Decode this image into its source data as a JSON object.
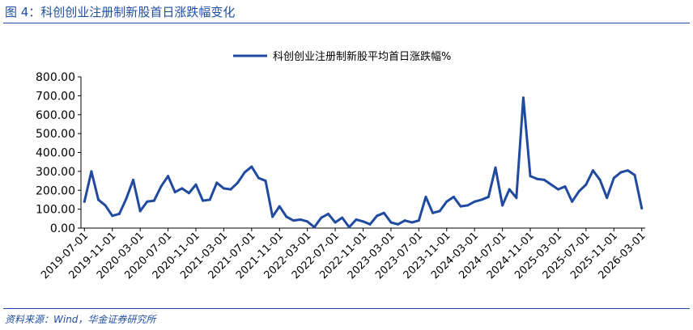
{
  "figure": {
    "title": "图 4：科创创业注册制新股首日涨跌幅变化",
    "source": "资料来源：Wind，华金证券研究所"
  },
  "colors": {
    "accent": "#1f4fa3",
    "series": "#1f4aa0"
  },
  "chart_data": {
    "type": "line",
    "title": "",
    "xlabel": "",
    "ylabel": "",
    "ylim": [
      0,
      800
    ],
    "y_ticks": [
      "0.00",
      "100.00",
      "200.00",
      "300.00",
      "400.00",
      "500.00",
      "600.00",
      "700.00",
      "800.00"
    ],
    "x_tick_labels": [
      "2019-07-01",
      "2019-11-01",
      "2020-03-01",
      "2020-07-01",
      "2020-11-01",
      "2021-03-01",
      "2021-07-01",
      "2021-11-01",
      "2022-03-01",
      "2022-07-01",
      "2022-11-01",
      "2023-03-01",
      "2023-07-01",
      "2023-11-01",
      "2024-03-01",
      "2024-07-01",
      "2024-11-01",
      "2025-03-01",
      "2025-07-01",
      "2025-11-01",
      "2026-03-01"
    ],
    "legend": {
      "position": "top-center"
    },
    "grid": false,
    "x": [
      "2019-07",
      "2019-08",
      "2019-09",
      "2019-10",
      "2019-11",
      "2019-12",
      "2020-01",
      "2020-02",
      "2020-03",
      "2020-04",
      "2020-05",
      "2020-06",
      "2020-07",
      "2020-08",
      "2020-09",
      "2020-10",
      "2020-11",
      "2020-12",
      "2021-01",
      "2021-02",
      "2021-03",
      "2021-04",
      "2021-05",
      "2021-06",
      "2021-07",
      "2021-08",
      "2021-09",
      "2021-10",
      "2021-11",
      "2021-12",
      "2022-01",
      "2022-02",
      "2022-03",
      "2022-04",
      "2022-05",
      "2022-06",
      "2022-07",
      "2022-08",
      "2022-09",
      "2022-10",
      "2022-11",
      "2022-12",
      "2023-01",
      "2023-02",
      "2023-03",
      "2023-04",
      "2023-05",
      "2023-06",
      "2023-07",
      "2023-08",
      "2023-09",
      "2023-10",
      "2023-11",
      "2023-12",
      "2024-01",
      "2024-02",
      "2024-03",
      "2024-04",
      "2024-05",
      "2024-06",
      "2024-07",
      "2024-08",
      "2024-09",
      "2024-10",
      "2024-11",
      "2024-12",
      "2025-01",
      "2025-02",
      "2025-03",
      "2025-04",
      "2025-05",
      "2025-06",
      "2025-07",
      "2025-08",
      "2025-09",
      "2025-10",
      "2025-11",
      "2025-12",
      "2026-01",
      "2026-02",
      "2026-03"
    ],
    "series": [
      {
        "name": "科创创业注册制新股平均首日涨跌幅%",
        "values": [
          140,
          300,
          150,
          120,
          65,
          75,
          155,
          255,
          90,
          140,
          145,
          220,
          275,
          190,
          210,
          185,
          230,
          145,
          150,
          240,
          210,
          205,
          240,
          295,
          325,
          265,
          250,
          60,
          115,
          60,
          40,
          45,
          35,
          5,
          55,
          75,
          30,
          55,
          5,
          45,
          35,
          20,
          65,
          80,
          30,
          20,
          40,
          30,
          40,
          165,
          80,
          90,
          140,
          165,
          115,
          120,
          140,
          150,
          165,
          320,
          120,
          205,
          160,
          690,
          275,
          260,
          255,
          230,
          205,
          220,
          140,
          195,
          230,
          305,
          255,
          160,
          265,
          295,
          305,
          280,
          105
        ]
      }
    ]
  }
}
